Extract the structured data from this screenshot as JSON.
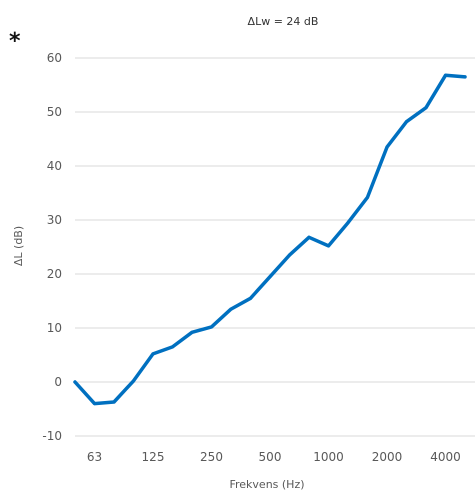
{
  "marker": "*",
  "chart_data": {
    "type": "line",
    "title": "ΔLw = 24 dB",
    "xlabel": "Frekvens (Hz)",
    "ylabel": "ΔL (dB)",
    "ylim": [
      -10,
      60
    ],
    "yticks": [
      -10,
      0,
      10,
      20,
      30,
      40,
      50,
      60
    ],
    "grid": true,
    "legend": "none",
    "line_color": "#0070C0",
    "grid_color": "#d9d9d9",
    "x_tick_labels": [
      "63",
      "125",
      "250",
      "500",
      "1000",
      "2000",
      "4000"
    ],
    "x": [
      "50",
      "63",
      "80",
      "100",
      "125",
      "160",
      "200",
      "250",
      "315",
      "400",
      "500",
      "630",
      "800",
      "1000",
      "1250",
      "1600",
      "2000",
      "2500",
      "3150",
      "4000",
      "5000"
    ],
    "series": [
      {
        "values": [
          0,
          -4,
          -3.7,
          0.2,
          5.2,
          6.5,
          9.2,
          10.2,
          13.5,
          15.5,
          19.5,
          23.5,
          26.8,
          25.2,
          29.5,
          34.2,
          43.5,
          48.2,
          50.8,
          56.8,
          56.5
        ]
      }
    ]
  }
}
